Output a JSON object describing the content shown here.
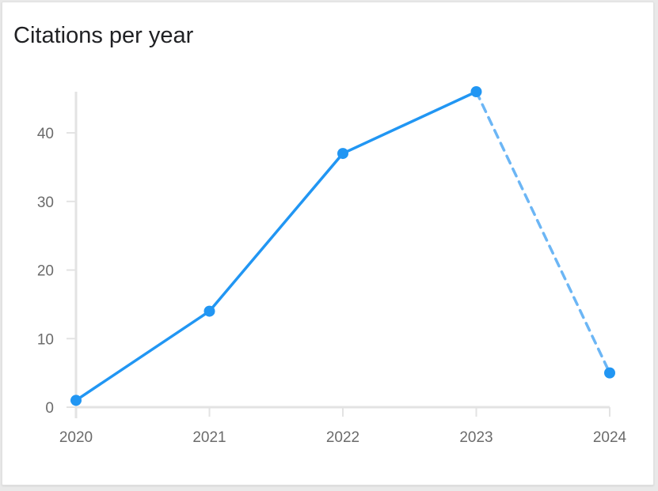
{
  "title": "Citations per year",
  "colors": {
    "line": "#2196f3",
    "projection": "#6cb6f5",
    "axis": "#e3e3e3",
    "tick_text": "#6b6b6b"
  },
  "chart_data": {
    "type": "line",
    "title": "Citations per year",
    "xlabel": "",
    "ylabel": "",
    "categories": [
      "2020",
      "2021",
      "2022",
      "2023",
      "2024"
    ],
    "series": [
      {
        "values": [
          1,
          14,
          37,
          46,
          5
        ],
        "line_style": [
          "solid",
          "solid",
          "solid",
          "dashed"
        ]
      }
    ],
    "ylim": [
      0,
      46
    ],
    "yticks": [
      0,
      10,
      20,
      30,
      40
    ],
    "grid": false,
    "legend": "none"
  }
}
